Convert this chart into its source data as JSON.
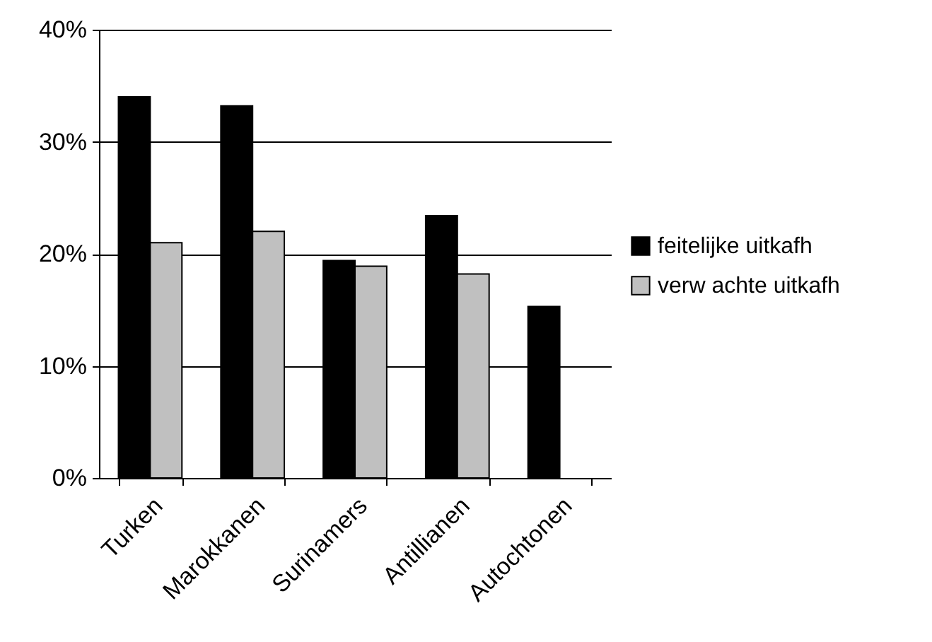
{
  "chart_data": {
    "type": "bar",
    "categories": [
      "Turken",
      "Marokkanen",
      "Surinamers",
      "Antillianen",
      "Autochtonen"
    ],
    "series": [
      {
        "name": "feitelijke uitkafh",
        "color": "#000000",
        "values": [
          34.0,
          33.2,
          19.4,
          23.4,
          15.3
        ]
      },
      {
        "name": "verw achte uitkafh",
        "color": "#c0c0c0",
        "values": [
          21.0,
          22.0,
          18.9,
          18.2,
          null
        ]
      }
    ],
    "ylim": [
      0,
      40
    ],
    "yticks": [
      {
        "value": 0,
        "label": "0%"
      },
      {
        "value": 10,
        "label": "10%"
      },
      {
        "value": 20,
        "label": "20%"
      },
      {
        "value": 30,
        "label": "30%"
      },
      {
        "value": 40,
        "label": "40%"
      }
    ],
    "grid": "y",
    "legend": "right"
  }
}
